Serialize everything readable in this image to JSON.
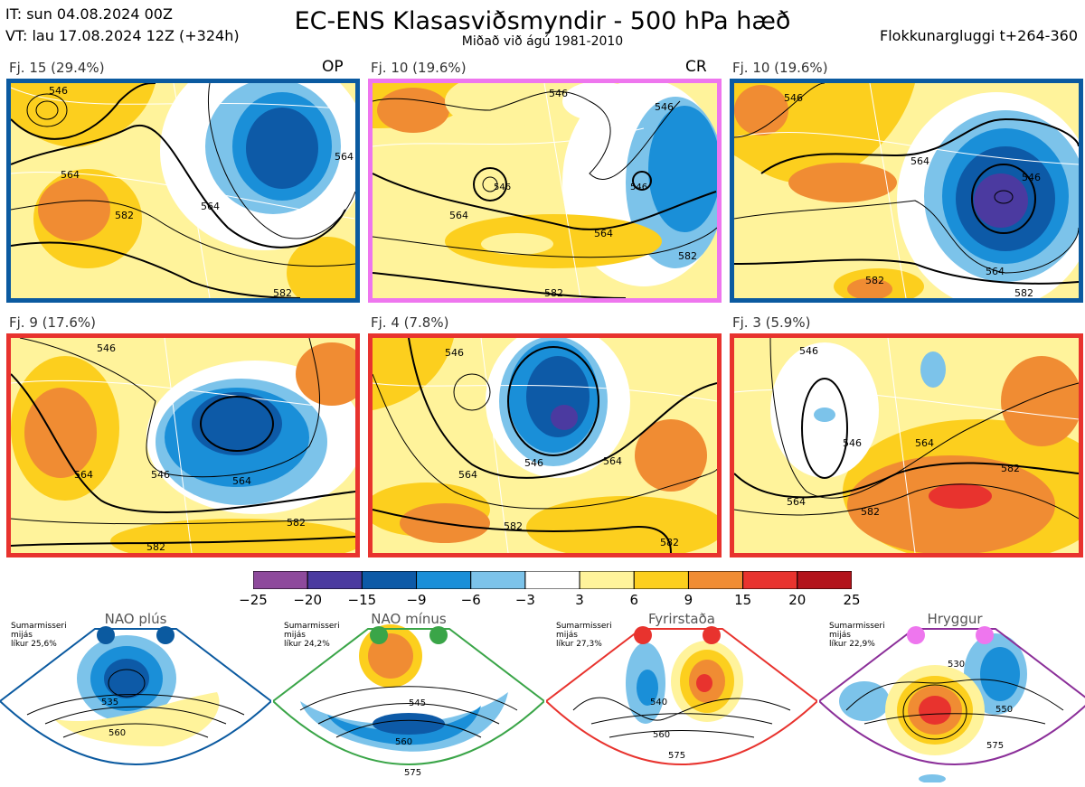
{
  "header": {
    "title": "EC-ENS Klasasviðsmyndir - 500 hPa hæð",
    "subtitle": "Miðað við ágú 1981-2010",
    "init_time": "IT: sun 04.08.2024 00Z",
    "valid_time": "VT: lau 17.08.2024 12Z  (+324h)",
    "window": "Flokkunargluggi t+264-360"
  },
  "colors": {
    "blue_border": "#0b5aa0",
    "pink_border": "#ee76ee",
    "red_border": "#e8332e",
    "green_border": "#3aa548",
    "purple_border": "#8b2f99"
  },
  "panels": [
    {
      "label": "Fj. 15 (29.4%)",
      "tag": "OP",
      "contours": [
        "546",
        "564",
        "564",
        "564",
        "582",
        "582"
      ]
    },
    {
      "label": "Fj. 10 (19.6%)",
      "tag": "CR",
      "contours": [
        "546",
        "546",
        "546",
        "546",
        "564",
        "564",
        "582",
        "582"
      ]
    },
    {
      "label": "Fj. 10 (19.6%)",
      "tag": "",
      "contours": [
        "546",
        "564",
        "546",
        "564",
        "582",
        "582"
      ]
    },
    {
      "label": "Fj. 9 (17.6%)",
      "tag": "",
      "contours": [
        "546",
        "564",
        "546",
        "564",
        "582",
        "582"
      ]
    },
    {
      "label": "Fj. 4 (7.8%)",
      "tag": "",
      "contours": [
        "546",
        "546",
        "564",
        "564",
        "582",
        "582"
      ]
    },
    {
      "label": "Fj. 3 (5.9%)",
      "tag": "",
      "contours": [
        "546",
        "546",
        "564",
        "564",
        "582",
        "582"
      ]
    }
  ],
  "chart_data": {
    "type": "heatmap",
    "title": "EC-ENS Klasasviðsmyndir - 500 hPa hæð",
    "clusters": [
      {
        "name": "Fj. 15",
        "percent": 29.4,
        "member": "OP",
        "regime": "NAO plús"
      },
      {
        "name": "Fj. 10",
        "percent": 19.6,
        "member": "CR",
        "regime": "Hryggur"
      },
      {
        "name": "Fj. 10",
        "percent": 19.6,
        "member": "",
        "regime": "NAO plús"
      },
      {
        "name": "Fj. 9",
        "percent": 17.6,
        "member": "",
        "regime": "Fyrirstaða"
      },
      {
        "name": "Fj. 4",
        "percent": 7.8,
        "member": "",
        "regime": "Fyrirstaða"
      },
      {
        "name": "Fj. 3",
        "percent": 5.9,
        "member": "",
        "regime": "Fyrirstaða"
      }
    ],
    "colorbar": {
      "ticks": [
        "−25",
        "−20",
        "−15",
        "−9",
        "−6",
        "−3",
        "3",
        "6",
        "9",
        "15",
        "20",
        "25"
      ],
      "colors": [
        "#8e4a9c",
        "#4b3aa0",
        "#0d5aa7",
        "#1a8fd8",
        "#7cc3ea",
        "#ffffff",
        "#fff39b",
        "#fccf1e",
        "#f08c33",
        "#e8332e",
        "#b3131b"
      ]
    },
    "regimes": [
      {
        "name": "NAO plús",
        "season": "Sumarmisseri",
        "tier": "mijás",
        "likelihood": "líkur 25,6%",
        "contours": [
          "535",
          "560"
        ],
        "dot_color": "#0b5aa0",
        "border": "#0b5aa0"
      },
      {
        "name": "NAO mínus",
        "season": "Sumarmisseri",
        "tier": "mijás",
        "likelihood": "líkur 24,2%",
        "contours": [
          "545",
          "560",
          "575"
        ],
        "dot_color": "#3aa548",
        "border": "#3aa548"
      },
      {
        "name": "Fyrirstaða",
        "season": "Sumarmisseri",
        "tier": "mijás",
        "likelihood": "líkur 27,3%",
        "contours": [
          "540",
          "560",
          "575"
        ],
        "dot_color": "#e8332e",
        "border": "#e8332e"
      },
      {
        "name": "Hryggur",
        "season": "Sumarmisseri",
        "tier": "mijás",
        "likelihood": "líkur 22,9%",
        "contours": [
          "530",
          "550",
          "575"
        ],
        "dot_color": "#ee76ee",
        "border": "#8b2f99"
      }
    ]
  }
}
